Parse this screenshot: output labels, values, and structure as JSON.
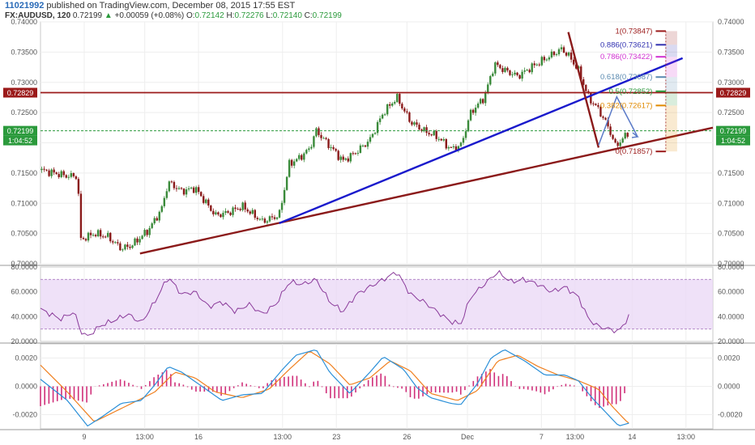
{
  "header": {
    "publisher_id": "11021992",
    "published_text": "published on TradingView.com, December 08, 2015 17:55 EST",
    "symbol": "FX:AUDUSD, 120",
    "last": "0.72199",
    "change_arrow": "▲",
    "change": "+0.00059 (+0.08%)",
    "o_label": "O:",
    "o_value": "0.72142",
    "h_label": "H:",
    "h_value": "0.72276",
    "l_label": "L:",
    "l_value": "0.72140",
    "c_label": "C:",
    "c_value": "0.72199"
  },
  "colors": {
    "up_candle": "#3a8a3a",
    "down_candle": "#8a1a1a",
    "trendline_red": "#8b1a1a",
    "trendline_blue": "#1a1acc",
    "rsi": "#8a3a9a",
    "rsi_band": "#ead7f5",
    "macd": "#2a8fd8",
    "signal": "#f08020",
    "histogram": "#d0307a",
    "current_price": "#2b9a3c",
    "resistance": "#9b1a1a"
  },
  "chart_data": [
    {
      "type": "candlestick",
      "symbol": "FX:AUDUSD",
      "timeframe": "120",
      "ylim": [
        0.7,
        0.74
      ],
      "y_ticks": [
        "0.74000",
        "0.73500",
        "0.73000",
        "0.72500",
        "0.72000",
        "0.71500",
        "0.71000",
        "0.70500",
        "0.70000"
      ],
      "x_ticks": [
        "9",
        "13:00",
        "16",
        "13:00",
        "23",
        "26",
        "Dec",
        "7",
        "13:00",
        "14",
        "13:00"
      ],
      "x_tick_pos": [
        0.065,
        0.155,
        0.235,
        0.36,
        0.44,
        0.545,
        0.635,
        0.745,
        0.795,
        0.88,
        0.96
      ],
      "price_path": [
        [
          0,
          0.7155
        ],
        [
          0.04,
          0.7145
        ],
        [
          0.055,
          0.7145
        ],
        [
          0.06,
          0.704
        ],
        [
          0.08,
          0.705
        ],
        [
          0.1,
          0.7045
        ],
        [
          0.12,
          0.7025
        ],
        [
          0.135,
          0.703
        ],
        [
          0.16,
          0.7055
        ],
        [
          0.18,
          0.709
        ],
        [
          0.19,
          0.7135
        ],
        [
          0.21,
          0.712
        ],
        [
          0.23,
          0.7125
        ],
        [
          0.26,
          0.708
        ],
        [
          0.28,
          0.7085
        ],
        [
          0.3,
          0.7095
        ],
        [
          0.33,
          0.707
        ],
        [
          0.355,
          0.708
        ],
        [
          0.37,
          0.7165
        ],
        [
          0.385,
          0.7175
        ],
        [
          0.4,
          0.719
        ],
        [
          0.41,
          0.722
        ],
        [
          0.43,
          0.7195
        ],
        [
          0.45,
          0.717
        ],
        [
          0.47,
          0.7185
        ],
        [
          0.49,
          0.7205
        ],
        [
          0.51,
          0.725
        ],
        [
          0.53,
          0.7275
        ],
        [
          0.55,
          0.7235
        ],
        [
          0.57,
          0.722
        ],
        [
          0.59,
          0.721
        ],
        [
          0.61,
          0.719
        ],
        [
          0.625,
          0.7195
        ],
        [
          0.64,
          0.725
        ],
        [
          0.66,
          0.7275
        ],
        [
          0.675,
          0.733
        ],
        [
          0.69,
          0.732
        ],
        [
          0.71,
          0.731
        ],
        [
          0.73,
          0.7325
        ],
        [
          0.745,
          0.7335
        ],
        [
          0.76,
          0.7345
        ],
        [
          0.775,
          0.7355
        ],
        [
          0.785,
          0.7345
        ],
        [
          0.8,
          0.732
        ],
        [
          0.815,
          0.7275
        ],
        [
          0.83,
          0.7255
        ],
        [
          0.845,
          0.7225
        ],
        [
          0.855,
          0.7195
        ],
        [
          0.865,
          0.7205
        ],
        [
          0.875,
          0.7219
        ]
      ],
      "annotations": {
        "resistance_label": "0.72829",
        "resistance_value": 0.72829,
        "current_label": "0.72199",
        "current_value": 0.72199,
        "countdown": "1:04:52"
      },
      "trendlines": [
        {
          "name": "rising-support-red",
          "from": [
            0.148,
            0.7017
          ],
          "to": [
            1.0,
            0.7225
          ]
        },
        {
          "name": "rising-blue",
          "from": [
            0.355,
            0.7067
          ],
          "to": [
            0.955,
            0.734
          ]
        },
        {
          "name": "falling-red",
          "from": [
            0.785,
            0.7383
          ],
          "to": [
            0.83,
            0.7192
          ]
        }
      ],
      "projection_path": [
        [
          0.83,
          0.7196
        ],
        [
          0.857,
          0.7276
        ],
        [
          0.888,
          0.721
        ]
      ],
      "fibonacci": [
        {
          "label": "1(0.73847)",
          "value": 0.73847,
          "color": "#9b1a1a"
        },
        {
          "label": "0.886(0.73621)",
          "value": 0.73621,
          "color": "#3030b0"
        },
        {
          "label": "0.786(0.73422)",
          "value": 0.73422,
          "color": "#d030d0"
        },
        {
          "label": "0.618(0.73087)",
          "value": 0.73087,
          "color": "#5a8ab0"
        },
        {
          "label": "0.5(0.72852)",
          "value": 0.72852,
          "color": "#2b9a3c"
        },
        {
          "label": "0.382(0.72617)",
          "value": 0.72617,
          "color": "#e08a00"
        },
        {
          "label": "0(0.71857)",
          "value": 0.71857,
          "color": "#9b1a1a"
        }
      ]
    },
    {
      "type": "line",
      "name": "RSI",
      "ylim": [
        20,
        80
      ],
      "y_ticks": [
        "80.0000",
        "60.0000",
        "40.0000",
        "20.0000"
      ],
      "band": [
        30,
        70
      ],
      "values_path": [
        [
          0,
          46
        ],
        [
          0.03,
          38
        ],
        [
          0.05,
          44
        ],
        [
          0.06,
          28
        ],
        [
          0.07,
          24
        ],
        [
          0.09,
          33
        ],
        [
          0.11,
          37
        ],
        [
          0.13,
          42
        ],
        [
          0.15,
          35
        ],
        [
          0.17,
          52
        ],
        [
          0.19,
          72
        ],
        [
          0.21,
          58
        ],
        [
          0.23,
          60
        ],
        [
          0.25,
          48
        ],
        [
          0.27,
          52
        ],
        [
          0.29,
          44
        ],
        [
          0.31,
          50
        ],
        [
          0.33,
          42
        ],
        [
          0.35,
          50
        ],
        [
          0.37,
          68
        ],
        [
          0.39,
          66
        ],
        [
          0.41,
          70
        ],
        [
          0.43,
          52
        ],
        [
          0.45,
          44
        ],
        [
          0.47,
          58
        ],
        [
          0.49,
          64
        ],
        [
          0.51,
          70
        ],
        [
          0.53,
          76
        ],
        [
          0.55,
          58
        ],
        [
          0.57,
          52
        ],
        [
          0.59,
          44
        ],
        [
          0.61,
          36
        ],
        [
          0.625,
          34
        ],
        [
          0.64,
          56
        ],
        [
          0.66,
          66
        ],
        [
          0.68,
          76
        ],
        [
          0.7,
          68
        ],
        [
          0.72,
          70
        ],
        [
          0.74,
          66
        ],
        [
          0.76,
          60
        ],
        [
          0.78,
          64
        ],
        [
          0.8,
          56
        ],
        [
          0.815,
          38
        ],
        [
          0.83,
          32
        ],
        [
          0.845,
          30
        ],
        [
          0.86,
          28
        ],
        [
          0.875,
          40
        ]
      ]
    },
    {
      "type": "line",
      "name": "MACD",
      "ylim": [
        -0.003,
        0.003
      ],
      "y_ticks": [
        "0.0020",
        "0.0000",
        "-0.0020"
      ],
      "macd_path": [
        [
          0,
          0.0005
        ],
        [
          0.04,
          -0.001
        ],
        [
          0.07,
          -0.0028
        ],
        [
          0.09,
          -0.0022
        ],
        [
          0.12,
          -0.0012
        ],
        [
          0.15,
          -0.001
        ],
        [
          0.17,
          0.0001
        ],
        [
          0.19,
          0.0014
        ],
        [
          0.21,
          0.001
        ],
        [
          0.24,
          0.0
        ],
        [
          0.27,
          -0.001
        ],
        [
          0.3,
          -0.0006
        ],
        [
          0.33,
          -0.0005
        ],
        [
          0.36,
          0.0012
        ],
        [
          0.38,
          0.0022
        ],
        [
          0.41,
          0.0026
        ],
        [
          0.43,
          0.001
        ],
        [
          0.46,
          -0.0005
        ],
        [
          0.49,
          0.001
        ],
        [
          0.51,
          0.0021
        ],
        [
          0.54,
          0.0012
        ],
        [
          0.56,
          -0.0001
        ],
        [
          0.58,
          -0.0008
        ],
        [
          0.61,
          -0.0012
        ],
        [
          0.625,
          -0.0013
        ],
        [
          0.65,
          0.0002
        ],
        [
          0.67,
          0.002
        ],
        [
          0.69,
          0.0026
        ],
        [
          0.72,
          0.0018
        ],
        [
          0.75,
          0.0008
        ],
        [
          0.78,
          0.0008
        ],
        [
          0.8,
          0.0004
        ],
        [
          0.82,
          -0.0008
        ],
        [
          0.84,
          -0.0018
        ],
        [
          0.86,
          -0.0028
        ],
        [
          0.875,
          -0.0026
        ]
      ],
      "signal_path": [
        [
          0,
          0.0015
        ],
        [
          0.04,
          -0.0004
        ],
        [
          0.08,
          -0.0025
        ],
        [
          0.11,
          -0.0018
        ],
        [
          0.14,
          -0.0011
        ],
        [
          0.17,
          -0.0004
        ],
        [
          0.2,
          0.001
        ],
        [
          0.23,
          0.0006
        ],
        [
          0.26,
          -0.0004
        ],
        [
          0.3,
          -0.0008
        ],
        [
          0.34,
          -0.0002
        ],
        [
          0.37,
          0.0012
        ],
        [
          0.4,
          0.0025
        ],
        [
          0.43,
          0.0016
        ],
        [
          0.46,
          0.0001
        ],
        [
          0.49,
          0.0006
        ],
        [
          0.52,
          0.0018
        ],
        [
          0.55,
          0.0011
        ],
        [
          0.58,
          -0.0005
        ],
        [
          0.62,
          -0.001
        ],
        [
          0.65,
          -0.0003
        ],
        [
          0.68,
          0.0018
        ],
        [
          0.71,
          0.0022
        ],
        [
          0.74,
          0.0014
        ],
        [
          0.77,
          0.0008
        ],
        [
          0.8,
          0.0004
        ],
        [
          0.83,
          -0.0002
        ],
        [
          0.85,
          -0.0014
        ],
        [
          0.87,
          -0.0024
        ],
        [
          0.875,
          -0.0026
        ]
      ]
    }
  ]
}
